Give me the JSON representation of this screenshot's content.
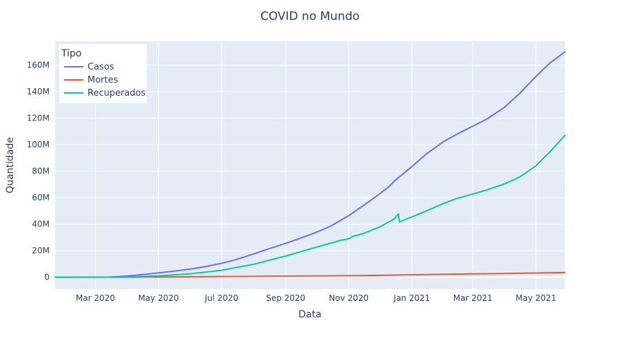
{
  "colors": {
    "page_bg": "#ffffff",
    "plot_bg": "#e5ecf6",
    "grid": "#ffffff",
    "text": "#2a3f5f",
    "casos": "#636efa",
    "mortes": "#ef553b",
    "recuperados": "#00cc96"
  },
  "chart_data": {
    "type": "line",
    "title": "COVID no Mundo",
    "xlabel": "Data",
    "ylabel": "Quantidade",
    "grid": true,
    "legend": {
      "title": "Tipo",
      "placement": "top-left"
    },
    "xlim": [
      "2020-01-22",
      "2021-05-29"
    ],
    "ylim": [
      -9000000,
      178000000
    ],
    "x_tick_labels": [
      {
        "date": "2020-03-01",
        "label": "Mar 2020"
      },
      {
        "date": "2020-05-01",
        "label": "May 2020"
      },
      {
        "date": "2020-07-01",
        "label": "Jul 2020"
      },
      {
        "date": "2020-09-01",
        "label": "Sep 2020"
      },
      {
        "date": "2020-11-01",
        "label": "Nov 2020"
      },
      {
        "date": "2021-01-01",
        "label": "Jan 2021"
      },
      {
        "date": "2021-03-01",
        "label": "Mar 2021"
      },
      {
        "date": "2021-05-01",
        "label": "May 2021"
      }
    ],
    "y_tick_labels": [
      {
        "value": 0,
        "label": "0"
      },
      {
        "value": 20000000,
        "label": "20M"
      },
      {
        "value": 40000000,
        "label": "40M"
      },
      {
        "value": 60000000,
        "label": "60M"
      },
      {
        "value": 80000000,
        "label": "80M"
      },
      {
        "value": 100000000,
        "label": "100M"
      },
      {
        "value": 120000000,
        "label": "120M"
      },
      {
        "value": 140000000,
        "label": "140M"
      },
      {
        "value": 160000000,
        "label": "160M"
      }
    ],
    "series": [
      {
        "name": "Casos",
        "color": "#636efa",
        "points": [
          [
            "2020-01-22",
            0
          ],
          [
            "2020-02-15",
            70000
          ],
          [
            "2020-03-01",
            90000
          ],
          [
            "2020-03-15",
            160000
          ],
          [
            "2020-04-01",
            950000
          ],
          [
            "2020-04-15",
            2000000
          ],
          [
            "2020-05-01",
            3300000
          ],
          [
            "2020-05-15",
            4500000
          ],
          [
            "2020-06-01",
            6200000
          ],
          [
            "2020-06-15",
            8000000
          ],
          [
            "2020-07-01",
            10500000
          ],
          [
            "2020-07-15",
            13300000
          ],
          [
            "2020-08-01",
            17600000
          ],
          [
            "2020-08-15",
            21300000
          ],
          [
            "2020-09-01",
            25600000
          ],
          [
            "2020-09-15",
            29400000
          ],
          [
            "2020-10-01",
            34000000
          ],
          [
            "2020-10-15",
            38800000
          ],
          [
            "2020-11-01",
            46500000
          ],
          [
            "2020-11-15",
            54000000
          ],
          [
            "2020-12-01",
            63000000
          ],
          [
            "2020-12-10",
            68500000
          ],
          [
            "2020-12-15",
            72500000
          ],
          [
            "2021-01-01",
            83500000
          ],
          [
            "2021-01-15",
            93000000
          ],
          [
            "2021-02-01",
            102500000
          ],
          [
            "2021-02-15",
            108500000
          ],
          [
            "2021-03-01",
            114000000
          ],
          [
            "2021-03-15",
            119500000
          ],
          [
            "2021-04-01",
            128500000
          ],
          [
            "2021-04-15",
            138500000
          ],
          [
            "2021-05-01",
            151500000
          ],
          [
            "2021-05-15",
            162000000
          ],
          [
            "2021-05-29",
            170000000
          ]
        ]
      },
      {
        "name": "Mortes",
        "color": "#ef553b",
        "points": [
          [
            "2020-01-22",
            0
          ],
          [
            "2020-03-01",
            3000
          ],
          [
            "2020-04-01",
            50000
          ],
          [
            "2020-05-01",
            230000
          ],
          [
            "2020-06-01",
            375000
          ],
          [
            "2020-07-01",
            520000
          ],
          [
            "2020-08-01",
            690000
          ],
          [
            "2020-09-01",
            860000
          ],
          [
            "2020-10-01",
            1010000
          ],
          [
            "2020-11-01",
            1190000
          ],
          [
            "2020-12-01",
            1460000
          ],
          [
            "2021-01-01",
            1820000
          ],
          [
            "2021-02-01",
            2230000
          ],
          [
            "2021-03-01",
            2540000
          ],
          [
            "2021-04-01",
            2810000
          ],
          [
            "2021-05-01",
            3210000
          ],
          [
            "2021-05-29",
            3540000
          ]
        ]
      },
      {
        "name": "Recuperados",
        "color": "#00cc96",
        "points": [
          [
            "2020-01-22",
            0
          ],
          [
            "2020-03-01",
            40000
          ],
          [
            "2020-04-01",
            200000
          ],
          [
            "2020-05-01",
            1000000
          ],
          [
            "2020-06-01",
            2600000
          ],
          [
            "2020-07-01",
            5200000
          ],
          [
            "2020-08-01",
            9800000
          ],
          [
            "2020-09-01",
            16000000
          ],
          [
            "2020-10-01",
            22800000
          ],
          [
            "2020-10-25",
            28000000
          ],
          [
            "2020-11-01",
            29000000
          ],
          [
            "2020-11-05",
            30800000
          ],
          [
            "2020-11-15",
            33000000
          ],
          [
            "2020-12-01",
            38000000
          ],
          [
            "2020-12-15",
            44000000
          ],
          [
            "2020-12-19",
            47800000
          ],
          [
            "2020-12-20",
            41800000
          ],
          [
            "2021-01-01",
            45500000
          ],
          [
            "2021-01-15",
            50000000
          ],
          [
            "2021-02-01",
            55800000
          ],
          [
            "2021-02-15",
            59800000
          ],
          [
            "2021-03-01",
            62800000
          ],
          [
            "2021-03-15",
            66000000
          ],
          [
            "2021-04-01",
            70500000
          ],
          [
            "2021-04-15",
            75500000
          ],
          [
            "2021-05-01",
            84000000
          ],
          [
            "2021-05-15",
            95000000
          ],
          [
            "2021-05-29",
            107000000
          ]
        ]
      }
    ]
  }
}
